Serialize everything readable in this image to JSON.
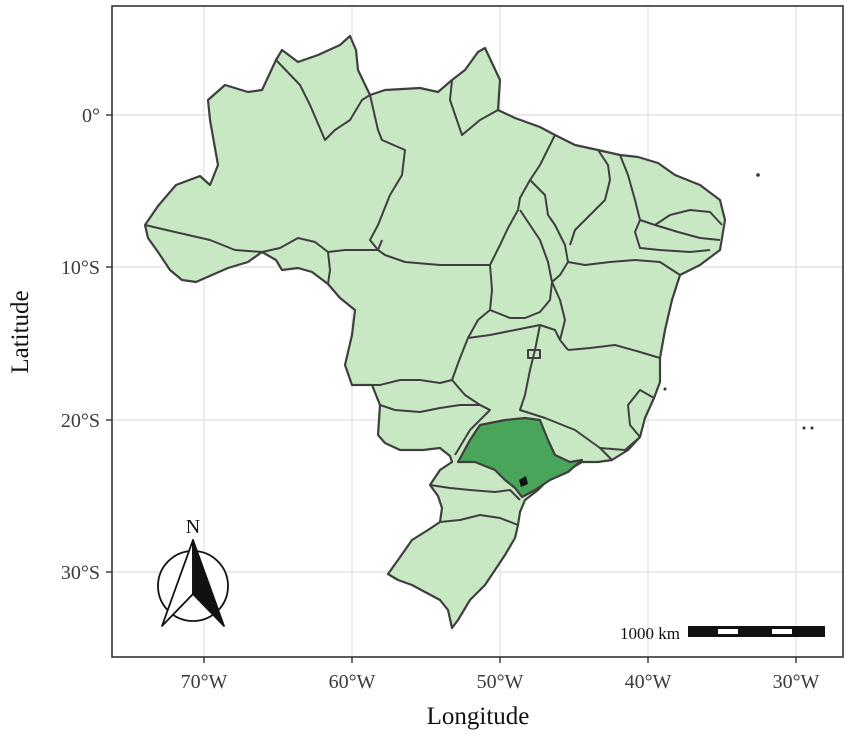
{
  "map": {
    "x_axis_title": "Longitude",
    "y_axis_title": "Latitude",
    "x_ticks": [
      "70°W",
      "60°W",
      "50°W",
      "40°W",
      "30°W"
    ],
    "y_ticks": [
      "0°",
      "10°S",
      "20°S",
      "30°S"
    ],
    "highlighted_region": "São Paulo state",
    "colors": {
      "land": "#c8e8c4",
      "highlight": "#48a55a",
      "border": "#3f3f3f",
      "grid": "#e3e3e3",
      "panel_border": "#333333"
    },
    "north_arrow": {
      "label": "N"
    },
    "scale_bar": {
      "label": "1000 km"
    }
  }
}
